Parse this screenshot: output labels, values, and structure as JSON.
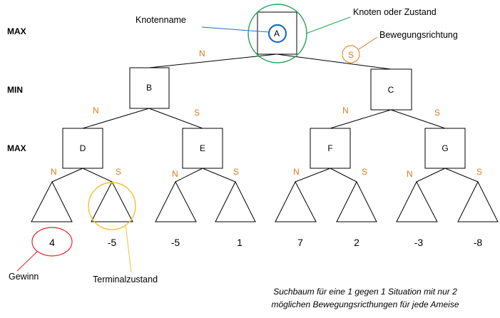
{
  "levels": [
    "MAX",
    "MIN",
    "MAX"
  ],
  "nodes": {
    "a": "A",
    "b": "B",
    "c": "C",
    "d": "D",
    "e": "E",
    "f": "F",
    "g": "G"
  },
  "edges": {
    "north": "N",
    "south": "S"
  },
  "terminal_values": [
    "4",
    "-5",
    "-5",
    "1",
    "7",
    "2",
    "-3",
    "-8"
  ],
  "annotations": {
    "node_name": "Knotenname",
    "node_or_state": "Knoten oder Zustand",
    "move_direction": "Bewegungsrichtung",
    "move_direction_symbol": "S",
    "win": "Gewinn",
    "terminal_state": "Terminalzustand"
  },
  "caption": {
    "line1": "Suchbaum für eine 1 gegen 1 Situation mit nur 2",
    "line2": "möglichen Bewegungsricthungen für jede Ameise"
  },
  "colors": {
    "edge_label": "#e07b1a",
    "node_name_callout": "#1f6fbf",
    "state_callout": "#22a35a",
    "terminal_callout": "#f2c22e",
    "win_callout": "#e0262b"
  }
}
